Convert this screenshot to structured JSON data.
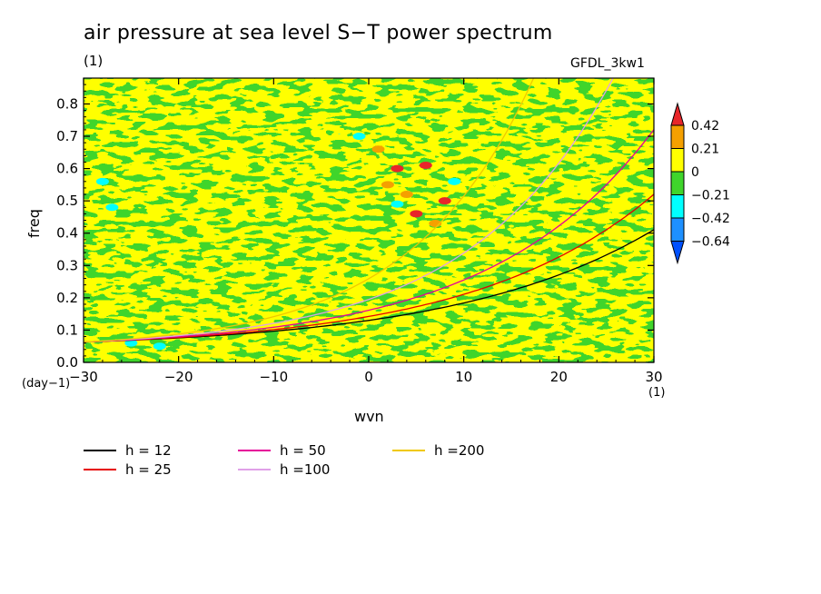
{
  "title": "air pressure at sea level S−T power spectrum",
  "units_label": "(1)",
  "model_label": "GFDL_3kw1",
  "chart_data": {
    "type": "heatmap",
    "title": "air pressure at sea level S−T power spectrum",
    "xlabel": "wvn",
    "ylabel": "freq",
    "x_unit_label": "(1)",
    "y_unit_label": "(day−1)",
    "xlim": [
      -30,
      30
    ],
    "ylim": [
      0,
      0.88
    ],
    "x_ticks": [
      -30,
      -20,
      -10,
      0,
      10,
      20,
      30
    ],
    "x_tick_labels": [
      "−30",
      "−20",
      "−10",
      "0",
      "10",
      "20",
      "30"
    ],
    "y_ticks": [
      0.0,
      0.1,
      0.2,
      0.3,
      0.4,
      0.5,
      0.6,
      0.7,
      0.8
    ],
    "y_tick_labels": [
      "0.0",
      "0.1",
      "0.2",
      "0.3",
      "0.4",
      "0.5",
      "0.6",
      "0.7",
      "0.8"
    ],
    "colorbar": {
      "levels": [
        "0.42",
        "0.21",
        "0",
        "−0.21",
        "−0.42",
        "−0.64"
      ],
      "colors": [
        "#e8262a",
        "#f5a000",
        "#ffff00",
        "#3fd52b",
        "#00ffff",
        "#1e90ff",
        "#0050ff"
      ]
    },
    "dispersion_curves": [
      {
        "name": "h = 12",
        "color": "#000000",
        "h": 12
      },
      {
        "name": "h = 25",
        "color": "#e60000",
        "h": 25
      },
      {
        "name": "h = 50",
        "color": "#e60099",
        "h": 50
      },
      {
        "name": "h =100",
        "color": "#e0a0e8",
        "h": 100
      },
      {
        "name": "h =200",
        "color": "#f0c800",
        "h": 200
      }
    ]
  }
}
